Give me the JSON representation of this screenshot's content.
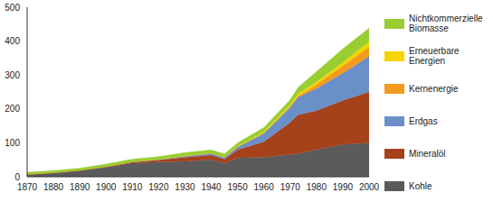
{
  "chart_data": {
    "type": "area",
    "stacked": true,
    "grid": false,
    "legend": "right",
    "x": [
      1870,
      1880,
      1890,
      1900,
      1910,
      1920,
      1930,
      1940,
      1945,
      1950,
      1960,
      1970,
      1973,
      1980,
      1990,
      2000
    ],
    "xlim": [
      1870,
      2000
    ],
    "xticks": [
      1870,
      1880,
      1890,
      1900,
      1910,
      1920,
      1930,
      1940,
      1950,
      1960,
      1970,
      1980,
      1990,
      2000
    ],
    "ylim": [
      0,
      500
    ],
    "yticks": [
      0,
      100,
      200,
      300,
      400,
      500
    ],
    "series": [
      {
        "name": "Kohle",
        "color": "#5b5b5b",
        "values": [
          7,
          12,
          18,
          28,
          40,
          43,
          45,
          50,
          40,
          55,
          58,
          65,
          68,
          80,
          95,
          100
        ]
      },
      {
        "name": "Mineralöl",
        "color": "#a5421c",
        "values": [
          0,
          0,
          1,
          2,
          3,
          6,
          12,
          14,
          12,
          25,
          45,
          95,
          115,
          115,
          130,
          150
        ]
      },
      {
        "name": "Erdgas",
        "color": "#6b8fc9",
        "values": [
          0,
          0,
          0,
          0,
          1,
          2,
          4,
          5,
          5,
          8,
          25,
          45,
          52,
          65,
          80,
          105
        ]
      },
      {
        "name": "Kernenergie",
        "color": "#f39a1e",
        "values": [
          0,
          0,
          0,
          0,
          0,
          0,
          0,
          0,
          0,
          0,
          0,
          1,
          3,
          12,
          22,
          28
        ]
      },
      {
        "name": "Erneuerbare Energien",
        "color": "#f5d400",
        "values": [
          0,
          0,
          0,
          0,
          0,
          0,
          1,
          1,
          1,
          2,
          4,
          6,
          7,
          8,
          10,
          15
        ]
      },
      {
        "name": "Nichtkommerzielle Biomasse",
        "color": "#9acd32",
        "values": [
          6,
          6,
          6,
          7,
          8,
          8,
          9,
          9,
          9,
          10,
          13,
          15,
          18,
          30,
          40,
          40
        ]
      }
    ]
  }
}
